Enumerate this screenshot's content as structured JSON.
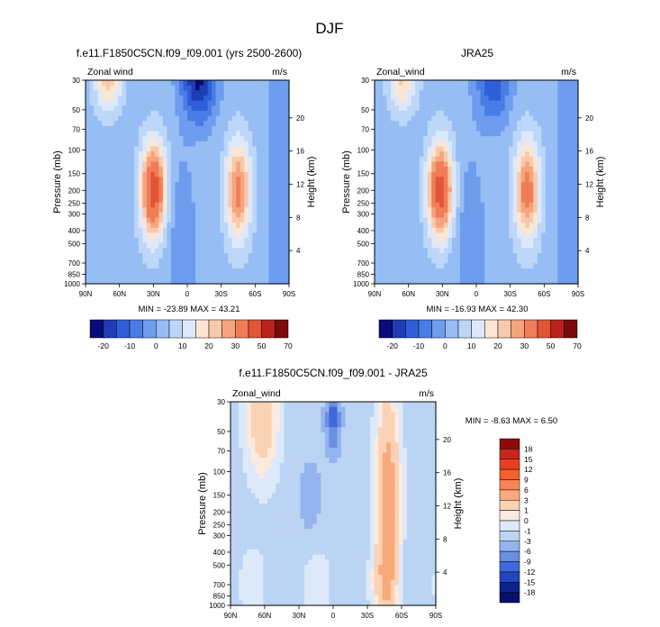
{
  "figure": {
    "title": "DJF"
  },
  "chart_data": [
    {
      "type": "heatmap",
      "title": "f.e11.F1850C5CN.f09_f09.001 (yrs 2500-2600)",
      "left_label": "Zonal wind",
      "right_label": "m/s",
      "ylabel": "Pressure (mb)",
      "ylabel_right": "Height (km)",
      "x_ticks": [
        "90N",
        "60N",
        "30N",
        "0",
        "30S",
        "60S",
        "90S"
      ],
      "y_ticks": [
        "30",
        "50",
        "70",
        "100",
        "150",
        "200",
        "250",
        "300",
        "400",
        "500",
        "700",
        "850",
        "1000"
      ],
      "height_ticks": [
        "4",
        "8",
        "12",
        "16",
        "20"
      ],
      "stats": "MIN = -23.89  MAX = 43.21",
      "min": -23.89,
      "max": 43.21,
      "colorbar_labels": [
        "-20",
        "-10",
        "0",
        "10",
        "20",
        "30",
        "50",
        "70"
      ],
      "features": [
        {
          "lat": 30,
          "p": 200,
          "peak": 43.21
        },
        {
          "lat": -45,
          "p": 200,
          "peak": 30
        },
        {
          "lat": 70,
          "p": 30,
          "peak": 20
        },
        {
          "lat": -10,
          "p": 30,
          "peak": -23.89
        }
      ]
    },
    {
      "type": "heatmap",
      "title": "JRA25",
      "left_label": "Zonal_wind",
      "right_label": "m/s",
      "ylabel": "Pressure (mb)",
      "ylabel_right": "Height (km)",
      "x_ticks": [
        "90N",
        "60N",
        "30N",
        "0",
        "30S",
        "60S",
        "90S"
      ],
      "y_ticks": [
        "30",
        "50",
        "70",
        "100",
        "150",
        "200",
        "250",
        "300",
        "400",
        "500",
        "700",
        "850",
        "1000"
      ],
      "height_ticks": [
        "4",
        "8",
        "12",
        "16",
        "20"
      ],
      "stats": "MIN = -16.93  MAX = 42.30",
      "min": -16.93,
      "max": 42.3,
      "colorbar_labels": [
        "-20",
        "-10",
        "0",
        "10",
        "20",
        "30",
        "50",
        "70"
      ],
      "features": [
        {
          "lat": 32,
          "p": 200,
          "peak": 42.3
        },
        {
          "lat": -45,
          "p": 200,
          "peak": 32
        },
        {
          "lat": 65,
          "p": 30,
          "peak": 18
        },
        {
          "lat": -15,
          "p": 30,
          "peak": -16.93
        }
      ]
    },
    {
      "type": "heatmap",
      "title": "f.e11.F1850C5CN.f09_f09.001 - JRA25",
      "left_label": "Zonal_wind",
      "right_label": "m/s",
      "ylabel": "Pressure (mb)",
      "ylabel_right": "Height (km)",
      "x_ticks": [
        "90N",
        "60N",
        "30N",
        "0",
        "30S",
        "60S",
        "90S"
      ],
      "y_ticks": [
        "30",
        "50",
        "70",
        "100",
        "150",
        "200",
        "250",
        "300",
        "400",
        "500",
        "700",
        "850",
        "1000"
      ],
      "height_ticks": [
        "4",
        "8",
        "12",
        "16",
        "20"
      ],
      "stats": "MIN = -8.63  MAX =  6.50",
      "min": -8.63,
      "max": 6.5,
      "colorbar_labels": [
        "18",
        "15",
        "12",
        "9",
        "6",
        "3",
        "1",
        "0",
        "-1",
        "-3",
        "-6",
        "-9",
        "-12",
        "-15",
        "-18"
      ],
      "features": [
        {
          "lat": 62,
          "p": 40,
          "peak": 4
        },
        {
          "lat": -48,
          "p": 200,
          "peak": 6.5
        },
        {
          "lat": 0,
          "p": 40,
          "peak": -8.63
        },
        {
          "lat": 20,
          "p": 150,
          "peak": -4
        }
      ]
    }
  ],
  "colors": {
    "cb_main": [
      "#0a0a78",
      "#1e3cb4",
      "#2f5fd8",
      "#4a7ce6",
      "#6e9cef",
      "#96bdf4",
      "#bcd7f8",
      "#dde9fb",
      "#fbe6d6",
      "#f9c9ab",
      "#f5a47e",
      "#f17d57",
      "#e25536",
      "#b8241c",
      "#7b0a0a"
    ],
    "cb_diff": [
      "#8c0a0a",
      "#c8261c",
      "#e6401e",
      "#f4602e",
      "#f78554",
      "#f9a97c",
      "#fbd2b4",
      "#fbeade",
      "#dde9f8",
      "#bcd4f4",
      "#94b4ef",
      "#6a8fe4",
      "#4068dc",
      "#2244c0",
      "#0c248c",
      "#06106a"
    ]
  }
}
